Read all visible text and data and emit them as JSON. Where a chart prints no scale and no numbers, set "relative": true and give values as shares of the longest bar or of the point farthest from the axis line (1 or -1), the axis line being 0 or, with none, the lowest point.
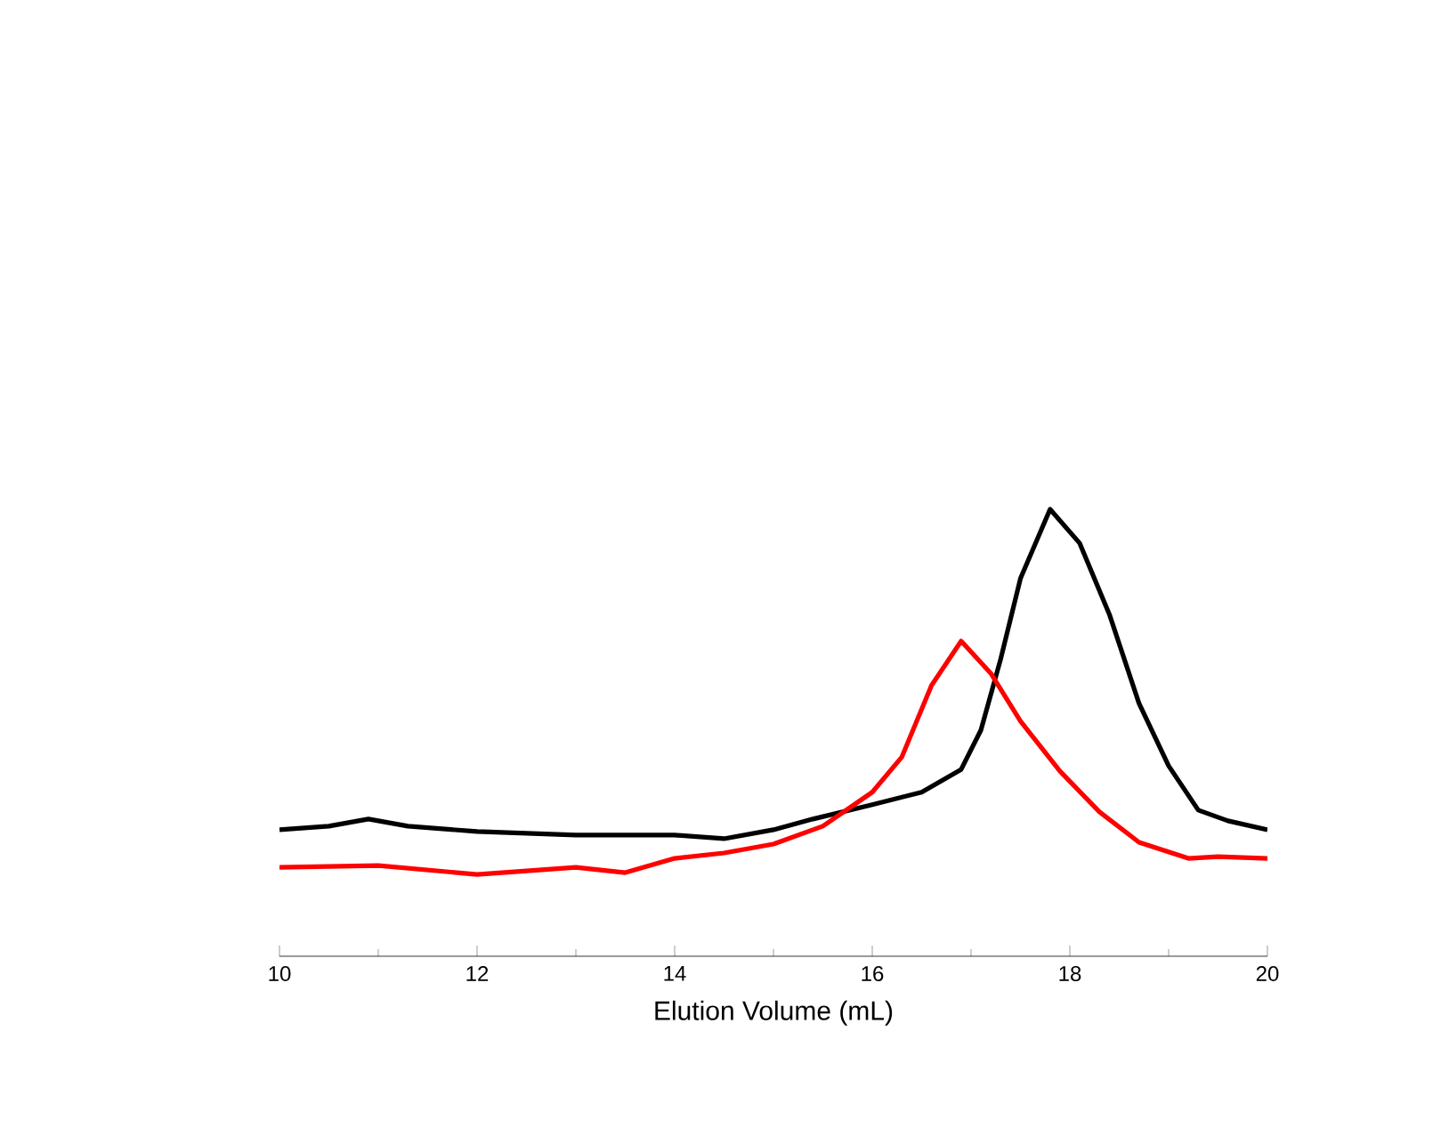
{
  "chart_data": {
    "type": "line",
    "xlabel": "Elution Volume (mL)",
    "relative": true,
    "xlim": [
      10,
      20
    ],
    "xticks": [
      10,
      {
        "value": 11,
        "label": null
      },
      12,
      {
        "value": 13,
        "label": null
      },
      14,
      {
        "value": 15,
        "label": null
      },
      16,
      {
        "value": 17,
        "label": null
      },
      18,
      {
        "value": 19,
        "label": null
      },
      20
    ],
    "marker": "none",
    "line_style": "solid",
    "series": [
      {
        "color": "#000000",
        "x": [
          10,
          10.5,
          10.9,
          11.3,
          12,
          13,
          14,
          14.5,
          15,
          15.4,
          16,
          16.5,
          16.9,
          17.1,
          17.3,
          17.5,
          17.8,
          18.1,
          18.4,
          18.7,
          19.0,
          19.3,
          19.6,
          20
        ],
        "values": [
          0.283,
          0.291,
          0.307,
          0.291,
          0.279,
          0.271,
          0.271,
          0.263,
          0.283,
          0.307,
          0.339,
          0.367,
          0.418,
          0.506,
          0.665,
          0.845,
          1.0,
          0.924,
          0.765,
          0.566,
          0.426,
          0.327,
          0.303,
          0.283
        ]
      },
      {
        "color": "#ff0000",
        "x": [
          10,
          11,
          12,
          13,
          13.5,
          14,
          14.5,
          15,
          15.5,
          16,
          16.3,
          16.6,
          16.9,
          17.2,
          17.5,
          17.9,
          18.3,
          18.7,
          19.2,
          19.5,
          20
        ],
        "values": [
          0.199,
          0.203,
          0.183,
          0.199,
          0.187,
          0.219,
          0.231,
          0.251,
          0.291,
          0.367,
          0.446,
          0.606,
          0.705,
          0.633,
          0.526,
          0.414,
          0.323,
          0.255,
          0.219,
          0.223,
          0.219
        ]
      }
    ]
  }
}
